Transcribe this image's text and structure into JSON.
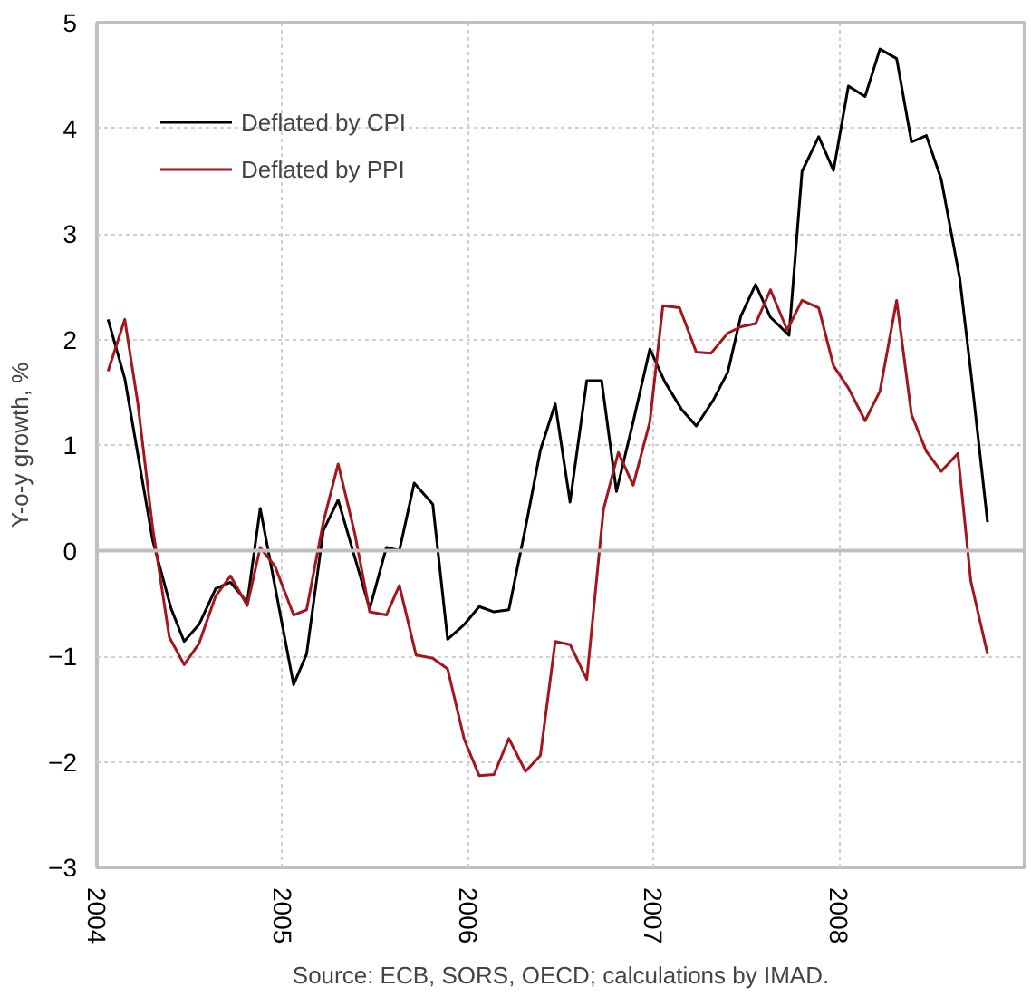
{
  "chart_data": {
    "type": "line",
    "ylabel": "Y-o-y growth, %",
    "xlim": [
      2004,
      2009
    ],
    "xticks": [
      2004,
      2005,
      2006,
      2007,
      2008
    ],
    "ylim": [
      -3,
      5
    ],
    "yticks": [
      -3,
      -2,
      -1,
      0,
      1,
      2,
      3,
      4,
      5
    ],
    "grid": true,
    "legend": "top left",
    "line_style": "solid",
    "marker": "none",
    "ref_lines": [
      {
        "axis": "y",
        "value": 0,
        "label": null,
        "color": "#bfbfbf"
      }
    ],
    "annotations": [
      "Source: ECB, SORS, OECD; calculations by IMAD."
    ],
    "series": [
      {
        "name": "Deflated by CPI",
        "color": "#000000",
        "x": [
          2004.06,
          2004.15,
          2004.3,
          2004.4,
          2004.47,
          2004.55,
          2004.64,
          2004.72,
          2004.81,
          2004.88,
          2005.06,
          2005.13,
          2005.22,
          2005.3,
          2005.47,
          2005.56,
          2005.63,
          2005.71,
          2005.81,
          2005.89,
          2005.98,
          2006.06,
          2006.14,
          2006.22,
          2006.31,
          2006.39,
          2006.47,
          2006.55,
          2006.64,
          2006.72,
          2006.8,
          2006.89,
          2006.98,
          2007.06,
          2007.15,
          2007.23,
          2007.32,
          2007.4,
          2007.47,
          2007.55,
          2007.63,
          2007.73,
          2007.8,
          2007.89,
          2007.97,
          2008.05,
          2008.14,
          2008.22,
          2008.31,
          2008.39,
          2008.47,
          2008.55,
          2008.65,
          2008.71,
          2008.8
        ],
        "values": [
          2.19,
          1.63,
          0.1,
          -0.55,
          -0.86,
          -0.7,
          -0.36,
          -0.3,
          -0.49,
          0.4,
          -1.27,
          -0.98,
          0.19,
          0.48,
          -0.55,
          0.03,
          0.0,
          0.64,
          0.44,
          -0.84,
          -0.7,
          -0.53,
          -0.58,
          -0.56,
          0.22,
          0.95,
          1.39,
          0.46,
          1.61,
          1.61,
          0.56,
          1.22,
          1.91,
          1.6,
          1.34,
          1.18,
          1.42,
          1.69,
          2.22,
          2.52,
          2.21,
          2.04,
          3.59,
          3.92,
          3.6,
          4.4,
          4.3,
          4.75,
          4.66,
          3.87,
          3.93,
          3.52,
          2.58,
          1.69,
          0.27
        ]
      },
      {
        "name": "Deflated by PPI",
        "color": "#a3161b",
        "x": [
          2004.06,
          2004.15,
          2004.22,
          2004.3,
          2004.39,
          2004.47,
          2004.55,
          2004.64,
          2004.72,
          2004.81,
          2004.88,
          2004.96,
          2005.06,
          2005.13,
          2005.22,
          2005.3,
          2005.39,
          2005.47,
          2005.56,
          2005.63,
          2005.72,
          2005.81,
          2005.89,
          2005.98,
          2006.06,
          2006.14,
          2006.22,
          2006.31,
          2006.39,
          2006.47,
          2006.55,
          2006.64,
          2006.73,
          2006.81,
          2006.89,
          2006.98,
          2007.05,
          2007.14,
          2007.23,
          2007.31,
          2007.4,
          2007.47,
          2007.55,
          2007.63,
          2007.72,
          2007.8,
          2007.89,
          2007.97,
          2008.05,
          2008.14,
          2008.22,
          2008.31,
          2008.39,
          2008.47,
          2008.55,
          2008.64,
          2008.71,
          2008.8
        ],
        "values": [
          1.7,
          2.19,
          1.4,
          0.22,
          -0.82,
          -1.08,
          -0.88,
          -0.43,
          -0.24,
          -0.52,
          0.03,
          -0.15,
          -0.61,
          -0.56,
          0.27,
          0.82,
          0.16,
          -0.58,
          -0.61,
          -0.33,
          -0.99,
          -1.02,
          -1.12,
          -1.79,
          -2.13,
          -2.12,
          -1.78,
          -2.09,
          -1.94,
          -0.86,
          -0.89,
          -1.22,
          0.39,
          0.93,
          0.62,
          1.22,
          2.32,
          2.3,
          1.88,
          1.87,
          2.06,
          2.12,
          2.15,
          2.47,
          2.09,
          2.37,
          2.3,
          1.75,
          1.54,
          1.23,
          1.51,
          2.37,
          1.29,
          0.94,
          0.75,
          0.92,
          -0.29,
          -0.98
        ]
      }
    ]
  }
}
